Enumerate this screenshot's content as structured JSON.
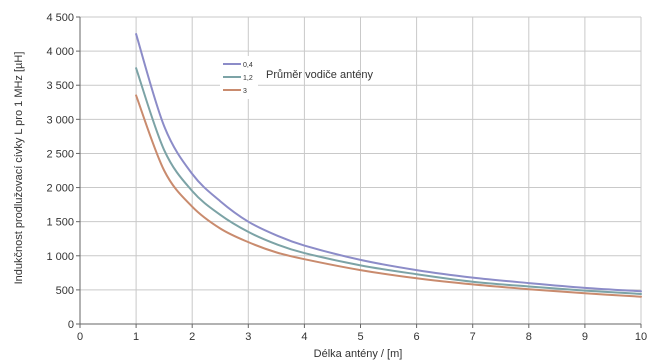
{
  "chart_data": {
    "type": "line",
    "xlabel": "Délka antény / [m]",
    "ylabel": "Indukčnost prodlužovací cívky L pro 1 MHz [µH]",
    "xlim": [
      0,
      10
    ],
    "ylim": [
      0,
      4500
    ],
    "x_ticks": [
      0,
      1,
      2,
      3,
      4,
      5,
      6,
      7,
      8,
      9,
      10
    ],
    "y_ticks": [
      0,
      500,
      1000,
      1500,
      2000,
      2500,
      3000,
      3500,
      4000,
      4500
    ],
    "x_tick_labels": [
      "0",
      "1",
      "2",
      "3",
      "4",
      "5",
      "6",
      "7",
      "8",
      "9",
      "10"
    ],
    "y_tick_labels": [
      "0",
      "500",
      "1 000",
      "1 500",
      "2 000",
      "2 500",
      "3 000",
      "3 500",
      "4 000",
      "4 500"
    ],
    "grid": true,
    "legend": {
      "title": "Průměr vodiče antény",
      "position": "top-center"
    },
    "series": [
      {
        "name": "0,4",
        "color": "#8c8cc8",
        "x": [
          1,
          1.5,
          2,
          2.5,
          3,
          3.5,
          4,
          5,
          6,
          7,
          8,
          9,
          10
        ],
        "y": [
          4250,
          2900,
          2200,
          1800,
          1500,
          1300,
          1150,
          940,
          790,
          680,
          600,
          530,
          480
        ]
      },
      {
        "name": "1,2",
        "color": "#7ca3a6",
        "x": [
          1,
          1.5,
          2,
          2.5,
          3,
          3.5,
          4,
          5,
          6,
          7,
          8,
          9,
          10
        ],
        "y": [
          3750,
          2550,
          1950,
          1600,
          1350,
          1170,
          1040,
          860,
          730,
          620,
          550,
          490,
          440
        ]
      },
      {
        "name": "3",
        "color": "#c98b6e",
        "x": [
          1,
          1.5,
          2,
          2.5,
          3,
          3.5,
          4,
          5,
          6,
          7,
          8,
          9,
          10
        ],
        "y": [
          3350,
          2250,
          1720,
          1400,
          1200,
          1050,
          950,
          790,
          670,
          580,
          510,
          450,
          400
        ]
      }
    ]
  }
}
